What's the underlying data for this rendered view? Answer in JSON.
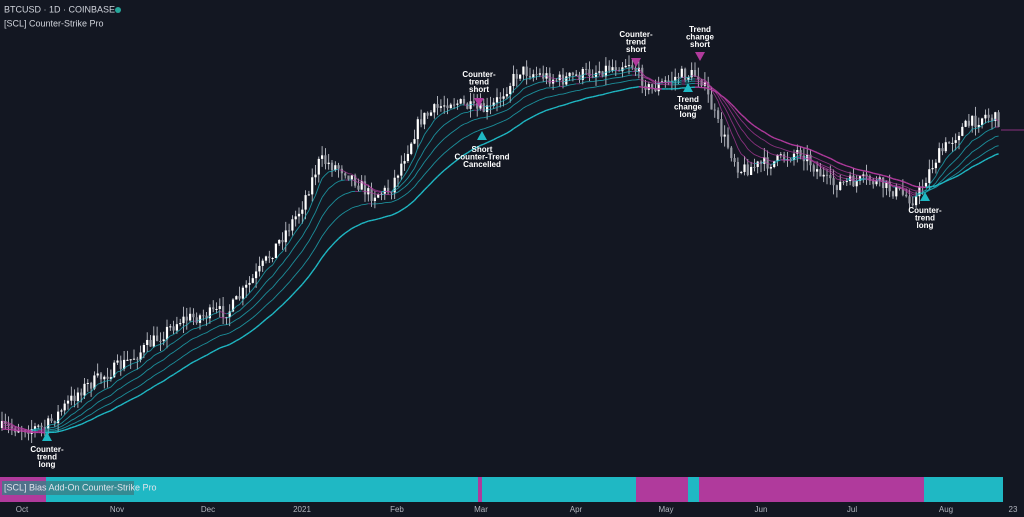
{
  "header": {
    "symbol": "BTCUSD · 1D · COINBASE",
    "indicator": "[SCL] Counter-Strike Pro"
  },
  "pane": {
    "title": "[SCL] Bias Add-On Counter-Strike Pro"
  },
  "x_axis": {
    "labels": [
      "Oct",
      "Nov",
      "Dec",
      "2021",
      "Feb",
      "Mar",
      "Apr",
      "May",
      "Jun",
      "Jul",
      "Aug",
      "23"
    ]
  },
  "annotations": [
    {
      "lines": [
        "Counter-",
        "trend",
        "long"
      ]
    },
    {
      "lines": [
        "Counter-",
        "trend",
        "short"
      ]
    },
    {
      "lines": [
        "Short",
        "Counter-Trend",
        "Cancelled"
      ]
    },
    {
      "lines": [
        "Counter-",
        "trend",
        "short"
      ]
    },
    {
      "lines": [
        "Trend",
        "change",
        "short"
      ]
    },
    {
      "lines": [
        "Trend",
        "change",
        "long"
      ]
    },
    {
      "lines": [
        "Counter-",
        "trend",
        "long"
      ]
    }
  ]
}
